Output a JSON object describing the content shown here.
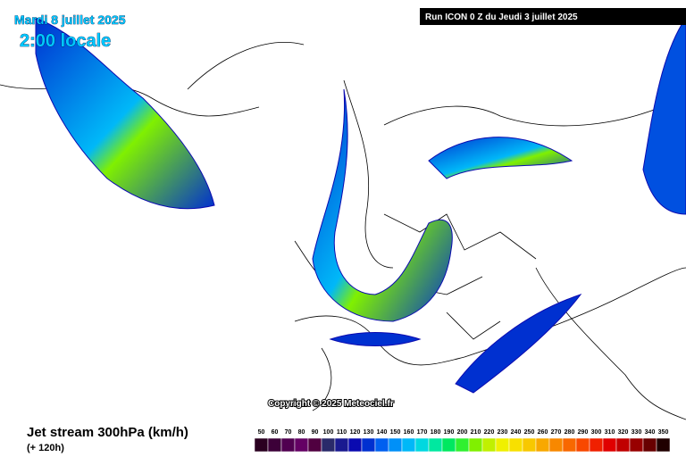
{
  "header": {
    "date": "Mardi 8 juillet 2025",
    "time": "2:00 locale",
    "run": "Run ICON 0 Z du Jeudi 3 juillet 2025"
  },
  "copyright": "Copyright © 2025 Meteociel.fr",
  "footer": {
    "title": "Jet stream 300hPa (km/h)",
    "lead": "(+ 120h)"
  },
  "legend": {
    "items": [
      {
        "label": "50",
        "color": "#2a0020"
      },
      {
        "label": "60",
        "color": "#3c0038"
      },
      {
        "label": "70",
        "color": "#500050"
      },
      {
        "label": "80",
        "color": "#640064"
      },
      {
        "label": "90",
        "color": "#500040"
      },
      {
        "label": "100",
        "color": "#2a2a6a"
      },
      {
        "label": "110",
        "color": "#1a1a90"
      },
      {
        "label": "120",
        "color": "#0a0ab0"
      },
      {
        "label": "130",
        "color": "#0030d0"
      },
      {
        "label": "140",
        "color": "#0060f0"
      },
      {
        "label": "150",
        "color": "#0090f8"
      },
      {
        "label": "160",
        "color": "#00b8f8"
      },
      {
        "label": "170",
        "color": "#00d8e0"
      },
      {
        "label": "180",
        "color": "#00e8a0"
      },
      {
        "label": "190",
        "color": "#00e860"
      },
      {
        "label": "200",
        "color": "#30f030"
      },
      {
        "label": "210",
        "color": "#80f000"
      },
      {
        "label": "220",
        "color": "#c0f000"
      },
      {
        "label": "230",
        "color": "#f0f000"
      },
      {
        "label": "240",
        "color": "#f8e000"
      },
      {
        "label": "250",
        "color": "#f8c800"
      },
      {
        "label": "260",
        "color": "#f8a800"
      },
      {
        "label": "270",
        "color": "#f88800"
      },
      {
        "label": "280",
        "color": "#f86800"
      },
      {
        "label": "290",
        "color": "#f84800"
      },
      {
        "label": "300",
        "color": "#f02000"
      },
      {
        "label": "310",
        "color": "#e00000"
      },
      {
        "label": "320",
        "color": "#c00000"
      },
      {
        "label": "330",
        "color": "#980000"
      },
      {
        "label": "340",
        "color": "#680000"
      },
      {
        "label": "350",
        "color": "#200000"
      }
    ]
  }
}
